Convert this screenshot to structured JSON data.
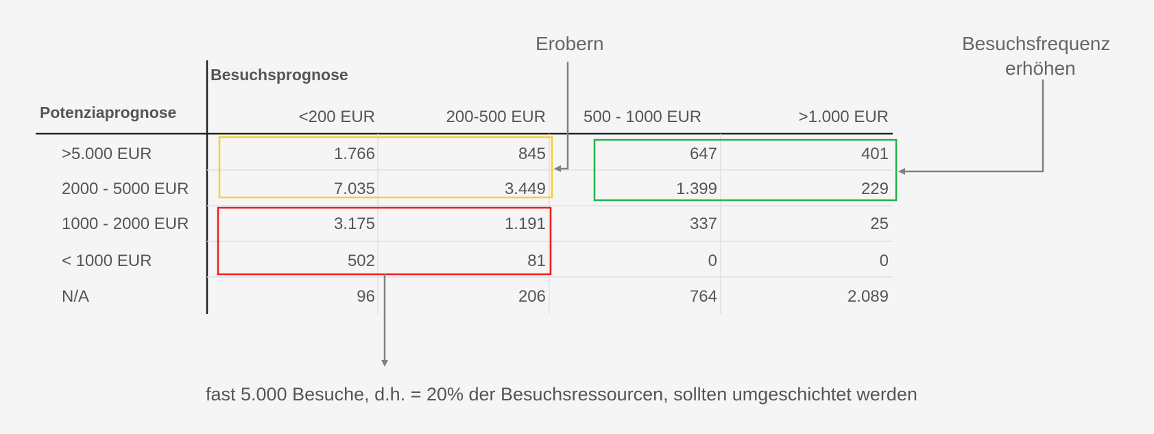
{
  "chart_data": {
    "type": "table",
    "row_header": "Potenziaprognose",
    "column_header": "Besuchsprognose",
    "columns": [
      "<200 EUR",
      "200-500 EUR",
      "500 - 1000 EUR",
      ">1.000 EUR"
    ],
    "rows": [
      {
        "label": ">5.000 EUR",
        "values": [
          "1.766",
          "845",
          "647",
          "401"
        ]
      },
      {
        "label": "2000 - 5000 EUR",
        "values": [
          "7.035",
          "3.449",
          "1.399",
          "229"
        ]
      },
      {
        "label": "1000 - 2000 EUR",
        "values": [
          "3.175",
          "1.191",
          "337",
          "25"
        ]
      },
      {
        "label": "< 1000 EUR",
        "values": [
          "502",
          "81",
          "0",
          "0"
        ]
      },
      {
        "label": "N/A",
        "values": [
          "96",
          "206",
          "764",
          "2.089"
        ]
      }
    ],
    "annotations": {
      "conquer": "Erobern",
      "frequency_line1": "Besuchsfrequenz",
      "frequency_line2": "erhöhen",
      "bottom_note": "fast 5.000 Besuche, d.h. = 20% der Besuchsressourcen, sollten umgeschichtet werden"
    },
    "highlight_colors": {
      "conquer": "#f5d327",
      "frequency": "#22b14c",
      "reallocate": "#ee1c1c"
    }
  }
}
